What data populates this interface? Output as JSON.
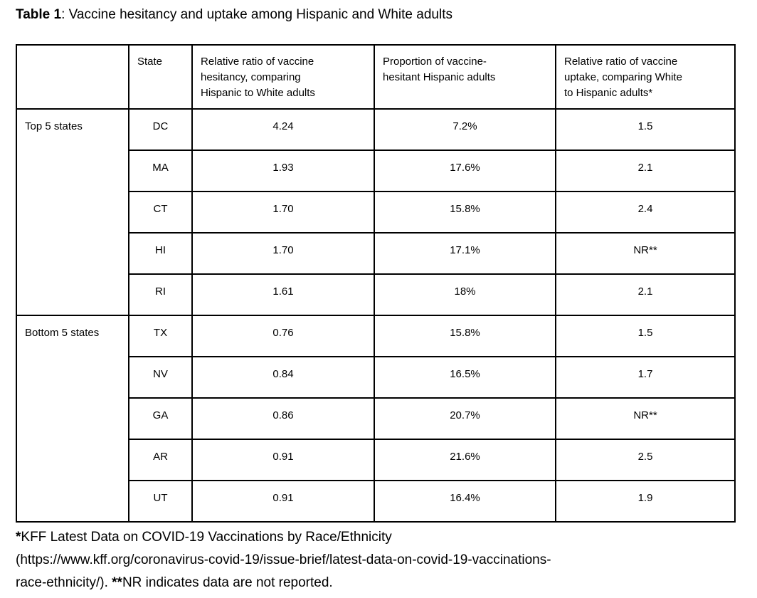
{
  "title": {
    "label": "Table 1",
    "caption": ": Vaccine hesitancy and uptake among Hispanic and White adults"
  },
  "table": {
    "columns": [
      {
        "name": "group",
        "lines": []
      },
      {
        "name": "state",
        "lines": [
          "State"
        ]
      },
      {
        "name": "hesitancy_ratio",
        "lines": [
          "Relative ratio of vaccine",
          "hesitancy, comparing",
          "Hispanic to White adults"
        ]
      },
      {
        "name": "proportion",
        "lines": [
          "Proportion of vaccine-",
          "hesitant Hispanic adults"
        ]
      },
      {
        "name": "uptake_ratio",
        "lines": [
          "Relative ratio of vaccine",
          "uptake, comparing White",
          "to Hispanic adults*"
        ]
      }
    ],
    "groups": [
      {
        "label": "Top 5 states",
        "rows": [
          {
            "state": "DC",
            "hesitancy_ratio": "4.24",
            "proportion": "7.2%",
            "uptake_ratio": "1.5"
          },
          {
            "state": "MA",
            "hesitancy_ratio": "1.93",
            "proportion": "17.6%",
            "uptake_ratio": "2.1"
          },
          {
            "state": "CT",
            "hesitancy_ratio": "1.70",
            "proportion": "15.8%",
            "uptake_ratio": "2.4"
          },
          {
            "state": "HI",
            "hesitancy_ratio": "1.70",
            "proportion": "17.1%",
            "uptake_ratio": "NR**"
          },
          {
            "state": "RI",
            "hesitancy_ratio": "1.61",
            "proportion": "18%",
            "uptake_ratio": "2.1"
          }
        ]
      },
      {
        "label": "Bottom 5 states",
        "rows": [
          {
            "state": "TX",
            "hesitancy_ratio": "0.76",
            "proportion": "15.8%",
            "uptake_ratio": "1.5"
          },
          {
            "state": "NV",
            "hesitancy_ratio": "0.84",
            "proportion": "16.5%",
            "uptake_ratio": "1.7"
          },
          {
            "state": "GA",
            "hesitancy_ratio": "0.86",
            "proportion": "20.7%",
            "uptake_ratio": "NR**"
          },
          {
            "state": "AR",
            "hesitancy_ratio": "0.91",
            "proportion": "21.6%",
            "uptake_ratio": "2.5"
          },
          {
            "state": "UT",
            "hesitancy_ratio": "0.91",
            "proportion": "16.4%",
            "uptake_ratio": "1.9"
          }
        ]
      }
    ]
  },
  "footnote": {
    "star1": "*",
    "line1": "KFF Latest Data on COVID-19 Vaccinations by Race/Ethnicity",
    "line2": "(https://www.kff.org/coronavirus-covid-19/issue-brief/latest-data-on-covid-19-vaccinations-",
    "line3_pre": "race-ethnicity/). ",
    "stars2": "**",
    "line3_post": "NR indicates data are not reported."
  },
  "colors": {
    "background": "#ffffff",
    "text": "#000000",
    "border": "#000000"
  }
}
